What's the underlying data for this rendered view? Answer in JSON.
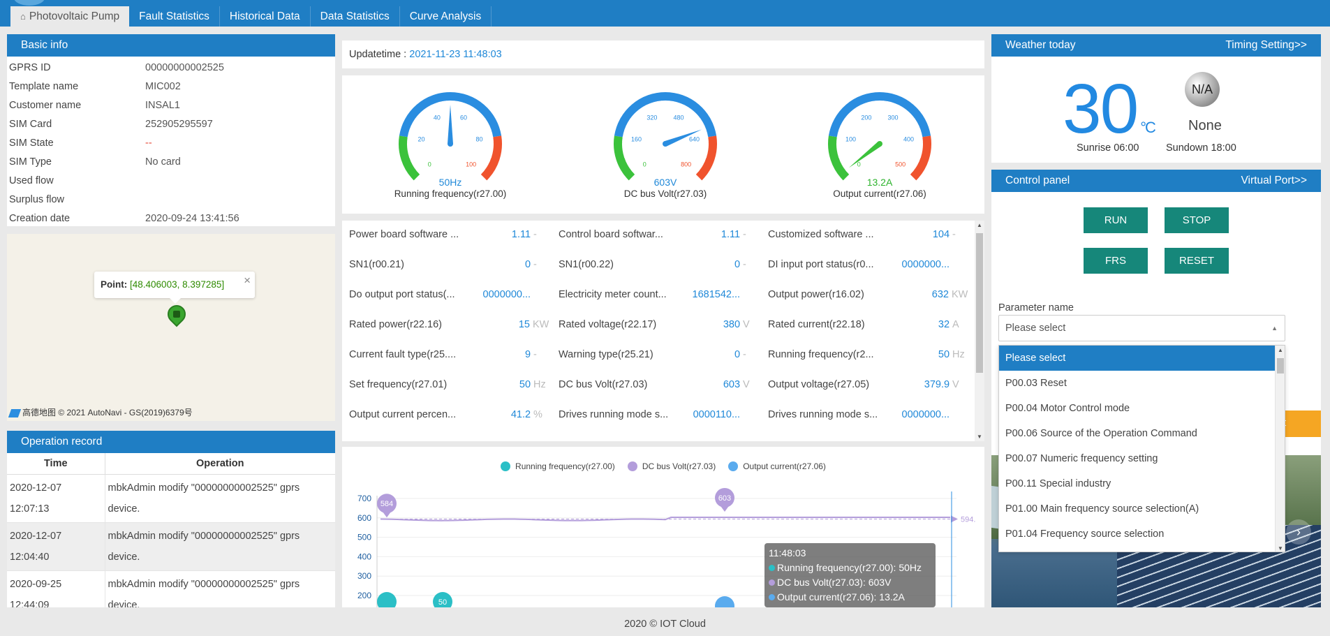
{
  "nav": {
    "tabs": [
      {
        "label": "Photovoltaic Pump",
        "icon": "home-icon"
      },
      {
        "label": "Fault Statistics"
      },
      {
        "label": "Historical Data"
      },
      {
        "label": "Data Statistics"
      },
      {
        "label": "Curve Analysis"
      }
    ]
  },
  "basic_info": {
    "title": "Basic info",
    "rows": [
      {
        "key": "GPRS ID",
        "value": "00000000002525"
      },
      {
        "key": "Template name",
        "value": "MIC002"
      },
      {
        "key": "Customer name",
        "value": "INSAL1"
      },
      {
        "key": "SIM Card",
        "value": "252905295597"
      },
      {
        "key": "SIM State",
        "value": "--"
      },
      {
        "key": "SIM Type",
        "value": "No card"
      },
      {
        "key": "Used flow",
        "value": ""
      },
      {
        "key": "Surplus flow",
        "value": ""
      },
      {
        "key": "Creation date",
        "value": "2020-09-24 13:41:56"
      }
    ]
  },
  "map": {
    "point_label": "Point:",
    "point_value": "[48.406003, 8.397285]",
    "close": "×",
    "attribution": "高德地图 © 2021 AutoNavi - GS(2019)6379号"
  },
  "operation_record": {
    "title": "Operation record",
    "headers": [
      "Time",
      "Operation"
    ],
    "rows": [
      {
        "time": "2020-12-07 12:07:13",
        "op": "mbkAdmin modify \"00000000002525\" gprs device."
      },
      {
        "time": "2020-12-07 12:04:40",
        "op": "mbkAdmin modify \"00000000002525\" gprs device."
      },
      {
        "time": "2020-09-25 12:44:09",
        "op": "mbkAdmin modify \"00000000002525\" gprs device."
      }
    ]
  },
  "update": {
    "label": "Updatetime : ",
    "value": "2021-11-23 11:48:03"
  },
  "gauges": [
    {
      "label": "Running frequency(r27.00)",
      "value": 50,
      "display": "50Hz",
      "ticks": [
        "0",
        "20",
        "40",
        "60",
        "80",
        "100"
      ],
      "max": 100,
      "value_color": "#1f88d8"
    },
    {
      "label": "DC bus Volt(r27.03)",
      "value": 603,
      "display": "603V",
      "ticks": [
        "0",
        "160",
        "320",
        "480",
        "640",
        "800"
      ],
      "max": 800,
      "value_color": "#1f88d8"
    },
    {
      "label": "Output current(r27.06)",
      "value": 13.2,
      "display": "13.2A",
      "ticks": [
        "0",
        "100",
        "200",
        "300",
        "400",
        "500"
      ],
      "max": 500,
      "value_color": "#2db32d"
    }
  ],
  "params": [
    [
      {
        "name": "Power board software ...",
        "value": "1.11",
        "unit": "-"
      },
      {
        "name": "SN1(r00.21)",
        "value": "0",
        "unit": "-"
      },
      {
        "name": "Do output port status(...",
        "value": "0000000...",
        "unit": ""
      },
      {
        "name": "Rated power(r22.16)",
        "value": "15",
        "unit": "KW"
      },
      {
        "name": "Current fault type(r25....",
        "value": "9",
        "unit": "-"
      },
      {
        "name": "Set frequency(r27.01)",
        "value": "50",
        "unit": "Hz"
      },
      {
        "name": "Output current percen...",
        "value": "41.2",
        "unit": "%"
      }
    ],
    [
      {
        "name": "Control board softwar...",
        "value": "1.11",
        "unit": "-"
      },
      {
        "name": "SN1(r00.22)",
        "value": "0",
        "unit": "-"
      },
      {
        "name": "Electricity meter count...",
        "value": "1681542...",
        "unit": ""
      },
      {
        "name": "Rated voltage(r22.17)",
        "value": "380",
        "unit": "V"
      },
      {
        "name": "Warning type(r25.21)",
        "value": "0",
        "unit": "-"
      },
      {
        "name": "DC bus Volt(r27.03)",
        "value": "603",
        "unit": "V"
      },
      {
        "name": "Drives running mode s...",
        "value": "0000110...",
        "unit": ""
      }
    ],
    [
      {
        "name": "Customized software ...",
        "value": "104",
        "unit": "-"
      },
      {
        "name": "DI input port status(r0...",
        "value": "0000000...",
        "unit": ""
      },
      {
        "name": "Output power(r16.02)",
        "value": "632",
        "unit": "KW"
      },
      {
        "name": "Rated current(r22.18)",
        "value": "32",
        "unit": "A"
      },
      {
        "name": "Running frequency(r2...",
        "value": "50",
        "unit": "Hz"
      },
      {
        "name": "Output voltage(r27.05)",
        "value": "379.9",
        "unit": "V"
      },
      {
        "name": "Drives running mode s...",
        "value": "0000000...",
        "unit": ""
      }
    ]
  ],
  "chart_data": {
    "type": "line",
    "series": [
      {
        "name": "Running frequency(r27.00)",
        "color": "#2bbfc6"
      },
      {
        "name": "DC bus Volt(r27.03)",
        "color": "#b39ddb"
      },
      {
        "name": "Output current(r27.06)",
        "color": "#5aabee"
      }
    ],
    "y_ticks": [
      "700",
      "600",
      "500",
      "400",
      "300",
      "200"
    ],
    "ylim": [
      100,
      700
    ],
    "dc_bus_line_value": 594,
    "dc_bus_end_label": "594.",
    "markers": [
      {
        "series": "DC bus Volt(r27.03)",
        "value": "584"
      },
      {
        "series": "DC bus Volt(r27.03)",
        "value": "603"
      },
      {
        "series": "Running frequency(r27.00)",
        "value": "50"
      }
    ],
    "tooltip": {
      "time": "11:48:03",
      "lines": [
        "Running frequency(r27.00): 50Hz",
        "DC bus Volt(r27.03): 603V",
        "Output current(r27.06): 13.2A"
      ]
    }
  },
  "weather": {
    "title": "Weather today",
    "link": "Timing Setting>>",
    "temp": "30",
    "unit": "°C",
    "icon_text": "N/A",
    "condition": "None",
    "sunrise": "Sunrise 06:00",
    "sundown": "Sundown 18:00"
  },
  "control": {
    "title": "Control panel",
    "link": "Virtual Port>>",
    "buttons": {
      "run": "RUN",
      "stop": "STOP",
      "frs": "FRS",
      "reset": "RESET"
    },
    "param_label": "Parameter name",
    "select_placeholder": "Please select",
    "hidden_button_partial": "t",
    "options": [
      "Please select",
      "P00.03 Reset",
      "P00.04 Motor Control mode",
      "P00.06 Source of the Operation Command",
      "P00.07 Numeric frequency setting",
      "P00.11 Special industry",
      "P01.00 Main frequency source selection(A)",
      "P01.04 Frequency source selection"
    ]
  },
  "footer": "2020 © IOT Cloud",
  "colors": {
    "primary": "#1f7ec4",
    "accent_blue": "#1f88d8",
    "button_teal": "#16877a",
    "warning": "#f5a623"
  }
}
